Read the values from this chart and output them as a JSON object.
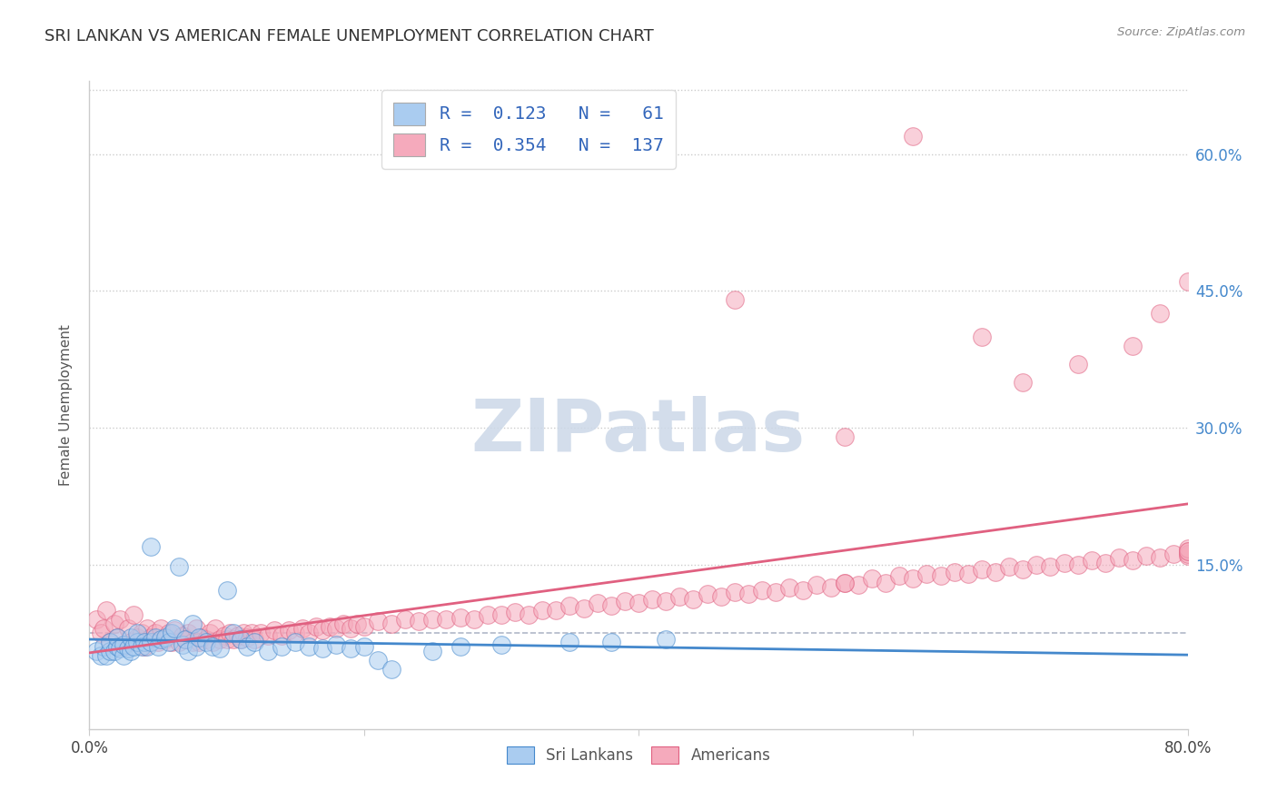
{
  "title": "SRI LANKAN VS AMERICAN FEMALE UNEMPLOYMENT CORRELATION CHART",
  "source": "Source: ZipAtlas.com",
  "ylabel": "Female Unemployment",
  "xmin": 0.0,
  "xmax": 0.8,
  "ymin": -0.03,
  "ymax": 0.68,
  "sri_lankan_R": "0.123",
  "sri_lankan_N": "61",
  "american_R": "0.354",
  "american_N": "137",
  "sri_lankan_color": "#aaccf0",
  "american_color": "#f5aabc",
  "sri_lankan_line_color": "#4488cc",
  "american_line_color": "#e06080",
  "background_color": "#ffffff",
  "watermark_text": "ZIPatlas",
  "watermark_color": "#ccd8e8",
  "legend_label_1": "Sri Lankans",
  "legend_label_2": "Americans",
  "dashed_line_y": 0.075,
  "sri_lankans_x": [
    0.005,
    0.008,
    0.01,
    0.012,
    0.015,
    0.015,
    0.018,
    0.02,
    0.02,
    0.022,
    0.025,
    0.025,
    0.028,
    0.03,
    0.03,
    0.032,
    0.035,
    0.035,
    0.038,
    0.04,
    0.042,
    0.045,
    0.045,
    0.048,
    0.05,
    0.052,
    0.055,
    0.058,
    0.06,
    0.062,
    0.065,
    0.068,
    0.07,
    0.072,
    0.075,
    0.078,
    0.08,
    0.085,
    0.09,
    0.095,
    0.1,
    0.105,
    0.11,
    0.115,
    0.12,
    0.13,
    0.14,
    0.15,
    0.16,
    0.17,
    0.18,
    0.19,
    0.2,
    0.21,
    0.22,
    0.25,
    0.27,
    0.3,
    0.35,
    0.38,
    0.42
  ],
  "sri_lankans_y": [
    0.055,
    0.05,
    0.06,
    0.05,
    0.055,
    0.065,
    0.055,
    0.06,
    0.07,
    0.058,
    0.05,
    0.062,
    0.058,
    0.055,
    0.07,
    0.06,
    0.065,
    0.075,
    0.06,
    0.065,
    0.06,
    0.17,
    0.065,
    0.07,
    0.06,
    0.068,
    0.07,
    0.065,
    0.075,
    0.08,
    0.148,
    0.062,
    0.068,
    0.055,
    0.085,
    0.06,
    0.07,
    0.065,
    0.06,
    0.058,
    0.122,
    0.075,
    0.068,
    0.06,
    0.065,
    0.055,
    0.06,
    0.065,
    0.06,
    0.058,
    0.062,
    0.058,
    0.06,
    0.045,
    0.035,
    0.055,
    0.06,
    0.062,
    0.065,
    0.065,
    0.068
  ],
  "americans_x": [
    0.005,
    0.008,
    0.01,
    0.012,
    0.015,
    0.018,
    0.02,
    0.022,
    0.025,
    0.028,
    0.03,
    0.032,
    0.035,
    0.038,
    0.04,
    0.042,
    0.045,
    0.048,
    0.05,
    0.052,
    0.055,
    0.058,
    0.06,
    0.062,
    0.065,
    0.068,
    0.07,
    0.072,
    0.075,
    0.078,
    0.08,
    0.082,
    0.085,
    0.088,
    0.09,
    0.092,
    0.095,
    0.098,
    0.1,
    0.102,
    0.105,
    0.108,
    0.11,
    0.112,
    0.115,
    0.118,
    0.12,
    0.125,
    0.13,
    0.135,
    0.14,
    0.145,
    0.15,
    0.155,
    0.16,
    0.165,
    0.17,
    0.175,
    0.18,
    0.185,
    0.19,
    0.195,
    0.2,
    0.21,
    0.22,
    0.23,
    0.24,
    0.25,
    0.26,
    0.27,
    0.28,
    0.29,
    0.3,
    0.31,
    0.32,
    0.33,
    0.34,
    0.35,
    0.36,
    0.37,
    0.38,
    0.39,
    0.4,
    0.41,
    0.42,
    0.43,
    0.44,
    0.45,
    0.46,
    0.47,
    0.48,
    0.49,
    0.5,
    0.51,
    0.52,
    0.53,
    0.54,
    0.55,
    0.56,
    0.57,
    0.58,
    0.59,
    0.6,
    0.61,
    0.62,
    0.63,
    0.64,
    0.65,
    0.66,
    0.67,
    0.68,
    0.69,
    0.7,
    0.71,
    0.72,
    0.73,
    0.74,
    0.75,
    0.76,
    0.77,
    0.78,
    0.79,
    0.8,
    0.8,
    0.8,
    0.8,
    0.8,
    0.47,
    0.6,
    0.55,
    0.65,
    0.68,
    0.72,
    0.76,
    0.78,
    0.8,
    0.55
  ],
  "americans_y": [
    0.09,
    0.075,
    0.08,
    0.1,
    0.065,
    0.085,
    0.07,
    0.09,
    0.06,
    0.08,
    0.065,
    0.095,
    0.07,
    0.075,
    0.06,
    0.08,
    0.07,
    0.075,
    0.065,
    0.08,
    0.068,
    0.075,
    0.065,
    0.078,
    0.065,
    0.072,
    0.068,
    0.075,
    0.065,
    0.08,
    0.065,
    0.07,
    0.068,
    0.075,
    0.065,
    0.08,
    0.068,
    0.072,
    0.068,
    0.075,
    0.068,
    0.072,
    0.068,
    0.075,
    0.07,
    0.075,
    0.068,
    0.075,
    0.072,
    0.078,
    0.072,
    0.078,
    0.075,
    0.08,
    0.075,
    0.082,
    0.078,
    0.082,
    0.08,
    0.085,
    0.08,
    0.085,
    0.082,
    0.088,
    0.085,
    0.09,
    0.088,
    0.09,
    0.09,
    0.092,
    0.09,
    0.095,
    0.095,
    0.098,
    0.095,
    0.1,
    0.1,
    0.105,
    0.102,
    0.108,
    0.105,
    0.11,
    0.108,
    0.112,
    0.11,
    0.115,
    0.112,
    0.118,
    0.115,
    0.12,
    0.118,
    0.122,
    0.12,
    0.125,
    0.122,
    0.128,
    0.125,
    0.13,
    0.128,
    0.135,
    0.13,
    0.138,
    0.135,
    0.14,
    0.138,
    0.142,
    0.14,
    0.145,
    0.142,
    0.148,
    0.145,
    0.15,
    0.148,
    0.152,
    0.15,
    0.155,
    0.152,
    0.158,
    0.155,
    0.16,
    0.158,
    0.162,
    0.16,
    0.165,
    0.162,
    0.168,
    0.165,
    0.44,
    0.62,
    0.29,
    0.4,
    0.35,
    0.37,
    0.39,
    0.425,
    0.46,
    0.13
  ]
}
